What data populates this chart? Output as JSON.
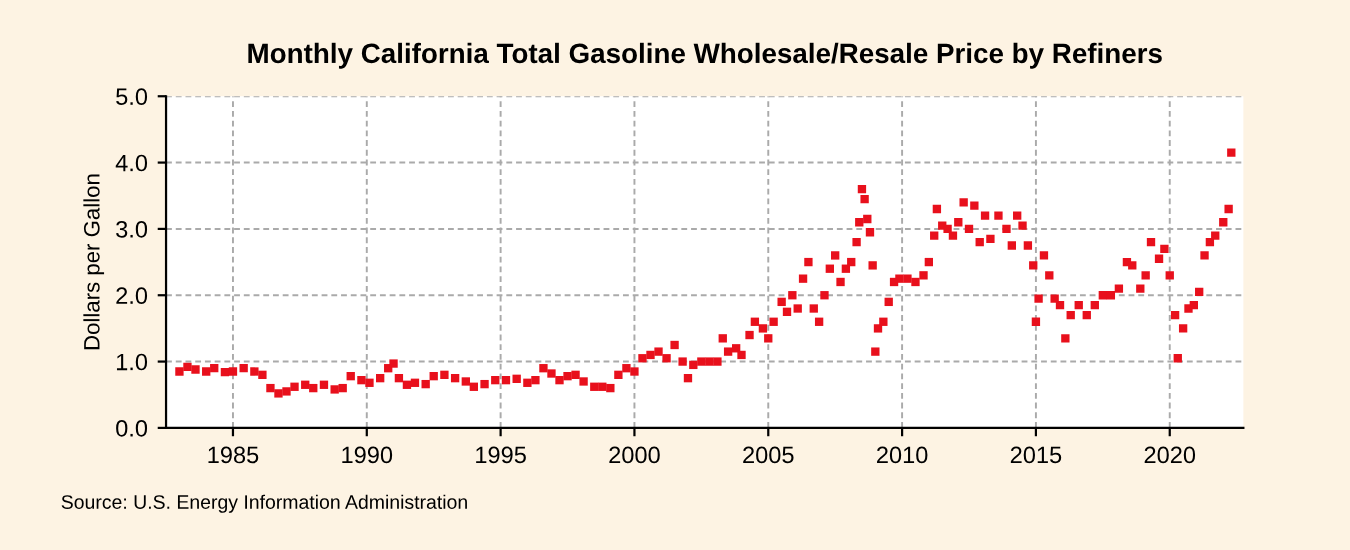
{
  "chart_data": {
    "type": "scatter",
    "title": "Monthly California Total Gasoline Wholesale/Resale Price by Refiners",
    "ylabel": "Dollars per Gallon",
    "annotations": [
      "Source: U.S. Energy Information Administration"
    ],
    "marker": "square",
    "grid": true,
    "xlim": [
      1982.5,
      2022.75
    ],
    "ylim": [
      0,
      5
    ],
    "xticks": [
      1985,
      1990,
      1995,
      2000,
      2005,
      2010,
      2015,
      2020
    ],
    "yticks": [
      {
        "value": 0,
        "label": "0.0"
      },
      {
        "value": 1,
        "label": "1.0"
      },
      {
        "value": 2,
        "label": "2.0"
      },
      {
        "value": 3,
        "label": "3.0"
      },
      {
        "value": 4,
        "label": "4.0"
      },
      {
        "value": 5,
        "label": "5.0"
      }
    ],
    "x": [
      1983.0,
      1983.3,
      1983.6,
      1984.0,
      1984.3,
      1984.7,
      1985.0,
      1985.4,
      1985.8,
      1986.1,
      1986.4,
      1986.7,
      1987.0,
      1987.3,
      1987.7,
      1988.0,
      1988.4,
      1988.8,
      1989.1,
      1989.4,
      1989.8,
      1990.1,
      1990.5,
      1990.8,
      1991.0,
      1991.2,
      1991.5,
      1991.8,
      1992.2,
      1992.5,
      1992.9,
      1993.3,
      1993.7,
      1994.0,
      1994.4,
      1994.8,
      1995.2,
      1995.6,
      1996.0,
      1996.3,
      1996.6,
      1996.9,
      1997.2,
      1997.5,
      1997.8,
      1998.1,
      1998.5,
      1998.8,
      1999.1,
      1999.4,
      1999.7,
      2000.0,
      2000.3,
      2000.6,
      2000.9,
      2001.2,
      2001.5,
      2001.8,
      2002.0,
      2002.2,
      2002.5,
      2002.8,
      2003.1,
      2003.3,
      2003.5,
      2003.8,
      2004.0,
      2004.3,
      2004.5,
      2004.8,
      2005.0,
      2005.2,
      2005.5,
      2005.7,
      2005.9,
      2006.1,
      2006.3,
      2006.5,
      2006.7,
      2006.9,
      2007.1,
      2007.3,
      2007.5,
      2007.7,
      2007.9,
      2008.1,
      2008.3,
      2008.4,
      2008.5,
      2008.6,
      2008.7,
      2008.8,
      2008.9,
      2009.0,
      2009.1,
      2009.3,
      2009.5,
      2009.7,
      2009.9,
      2010.2,
      2010.5,
      2010.8,
      2011.0,
      2011.2,
      2011.3,
      2011.5,
      2011.7,
      2011.9,
      2012.1,
      2012.3,
      2012.5,
      2012.7,
      2012.9,
      2013.1,
      2013.3,
      2013.6,
      2013.9,
      2014.1,
      2014.3,
      2014.5,
      2014.7,
      2014.9,
      2015.0,
      2015.1,
      2015.3,
      2015.5,
      2015.7,
      2015.9,
      2016.1,
      2016.3,
      2016.6,
      2016.9,
      2017.2,
      2017.5,
      2017.8,
      2018.1,
      2018.4,
      2018.6,
      2018.9,
      2019.1,
      2019.3,
      2019.6,
      2019.8,
      2020.0,
      2020.2,
      2020.3,
      2020.5,
      2020.7,
      2020.9,
      2021.1,
      2021.3,
      2021.5,
      2021.7,
      2022.0,
      2022.2,
      2022.3
    ],
    "series": [
      {
        "color": "#e8101c",
        "values": [
          0.85,
          0.92,
          0.88,
          0.85,
          0.9,
          0.84,
          0.85,
          0.9,
          0.85,
          0.8,
          0.6,
          0.52,
          0.55,
          0.62,
          0.65,
          0.6,
          0.65,
          0.58,
          0.6,
          0.78,
          0.72,
          0.68,
          0.75,
          0.9,
          0.97,
          0.75,
          0.65,
          0.68,
          0.66,
          0.78,
          0.8,
          0.75,
          0.7,
          0.62,
          0.66,
          0.72,
          0.72,
          0.74,
          0.68,
          0.72,
          0.9,
          0.82,
          0.72,
          0.78,
          0.8,
          0.7,
          0.62,
          0.62,
          0.6,
          0.8,
          0.9,
          0.85,
          1.05,
          1.1,
          1.15,
          1.05,
          1.25,
          1.0,
          0.75,
          0.95,
          1.0,
          1.0,
          1.0,
          1.35,
          1.15,
          1.2,
          1.1,
          1.4,
          1.6,
          1.5,
          1.35,
          1.6,
          1.9,
          1.75,
          2.0,
          1.8,
          2.25,
          2.5,
          1.8,
          1.6,
          2.0,
          2.4,
          2.6,
          2.2,
          2.4,
          2.5,
          2.8,
          3.1,
          3.6,
          3.45,
          3.15,
          2.95,
          2.45,
          1.15,
          1.5,
          1.6,
          1.9,
          2.2,
          2.25,
          2.25,
          2.2,
          2.3,
          2.5,
          2.9,
          3.3,
          3.05,
          3.0,
          2.9,
          3.1,
          3.4,
          3.0,
          3.35,
          2.8,
          3.2,
          2.85,
          3.2,
          3.0,
          2.75,
          3.2,
          3.05,
          2.75,
          2.45,
          1.6,
          1.95,
          2.6,
          2.3,
          1.95,
          1.85,
          1.35,
          1.7,
          1.85,
          1.7,
          1.85,
          2.0,
          2.0,
          2.1,
          2.5,
          2.45,
          2.1,
          2.3,
          2.8,
          2.55,
          2.7,
          2.3,
          1.7,
          1.05,
          1.5,
          1.8,
          1.85,
          2.05,
          2.6,
          2.8,
          2.9,
          3.1,
          3.3,
          4.15
        ]
      }
    ]
  }
}
